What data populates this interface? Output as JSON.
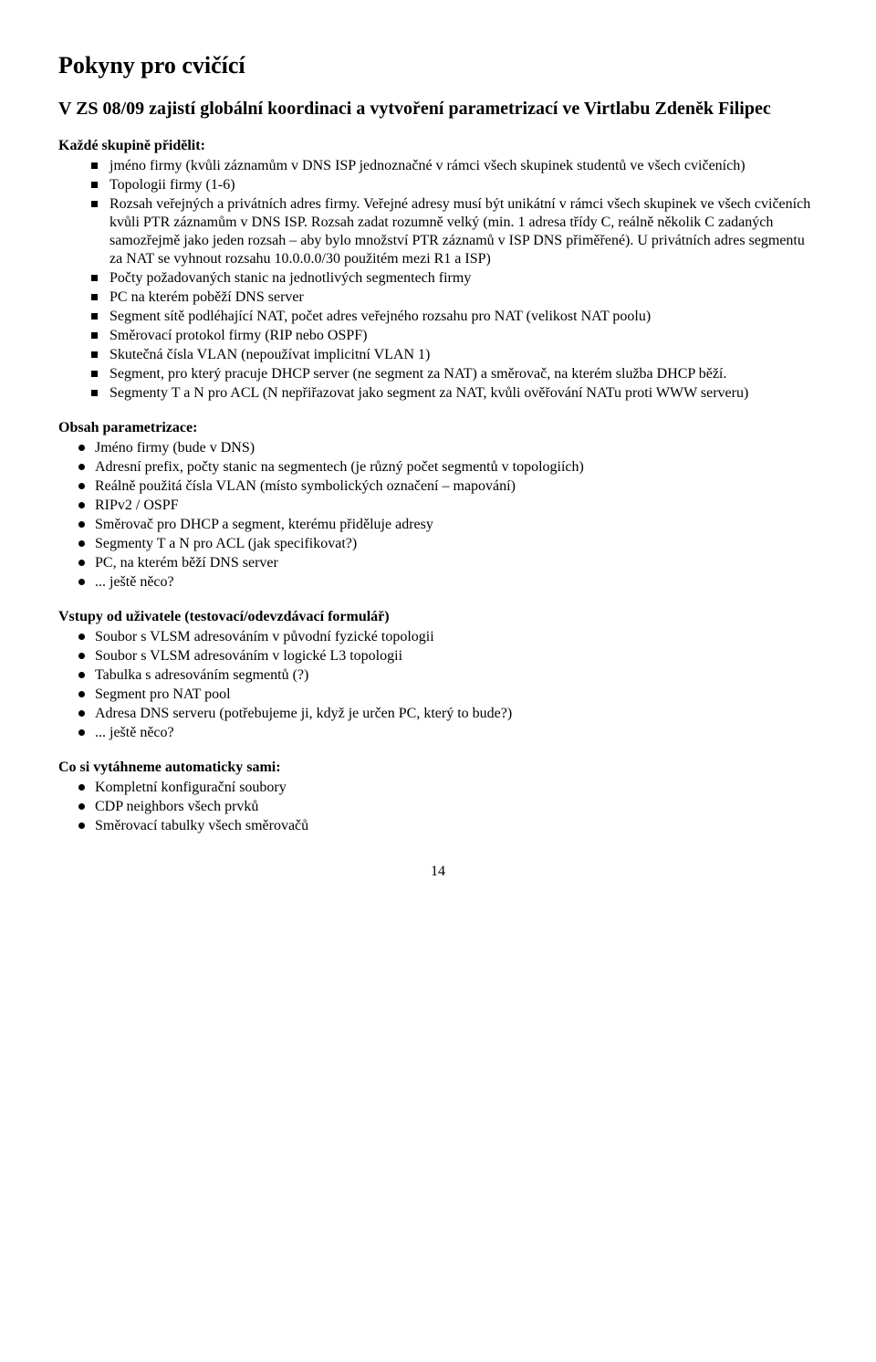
{
  "title": "Pokyny pro cvičící",
  "intro_sub": "V ZS 08/09 zajistí globální koordinaci a vytvoření parametrizací ve Virtlabu Zdeněk Filipec",
  "section1": {
    "lead": "Každé skupině přidělit:",
    "items": [
      "jméno firmy (kvůli záznamům v DNS ISP jednoznačné v rámci všech skupinek studentů ve všech cvičeních)",
      "Topologii firmy (1-6)",
      "Rozsah veřejných a privátních adres firmy. Veřejné adresy musí být unikátní v rámci všech skupinek ve všech cvičeních kvůli PTR záznamům v DNS ISP. Rozsah zadat rozumně velký (min. 1 adresa třídy C, reálně několik C zadaných samozřejmě jako jeden rozsah – aby bylo množství PTR záznamů v ISP DNS přiměřené). U privátních adres segmentu za NAT se vyhnout rozsahu 10.0.0.0/30 použitém mezi R1 a ISP)",
      "Počty požadovaných stanic na jednotlivých segmentech firmy",
      "PC na kterém poběží DNS server",
      "Segment sítě podléhající NAT, počet adres veřejného rozsahu pro NAT (velikost NAT poolu)",
      "Směrovací protokol firmy (RIP nebo OSPF)",
      "Skutečná čísla VLAN (nepoužívat implicitní VLAN 1)",
      "Segment, pro který pracuje DHCP server (ne segment za NAT) a směrovač, na kterém služba DHCP běží.",
      "Segmenty T a N pro ACL (N nepřiřazovat jako segment za NAT, kvůli ověřování NATu proti WWW serveru)"
    ]
  },
  "section2": {
    "lead": "Obsah parametrizace:",
    "items": [
      "Jméno firmy (bude v DNS)",
      "Adresní prefix, počty stanic na segmentech (je různý počet segmentů v topologiích)",
      "Reálně použitá čísla VLAN (místo symbolických označení – mapování)",
      "RIPv2 / OSPF",
      "Směrovač pro DHCP a segment, kterému přiděluje adresy",
      "Segmenty T a N pro ACL (jak specifikovat?)",
      "PC, na kterém běží DNS server",
      "... ještě něco?"
    ]
  },
  "section3": {
    "lead": "Vstupy od uživatele (testovací/odevzdávací formulář)",
    "items": [
      "Soubor s VLSM adresováním v původní fyzické topologii",
      "Soubor s VLSM adresováním v logické L3 topologii",
      "Tabulka s adresováním segmentů (?)",
      "Segment pro NAT pool",
      "Adresa DNS serveru (potřebujeme ji, když je určen PC, který to bude?)",
      "... ještě něco?"
    ]
  },
  "section4": {
    "lead": "Co si vytáhneme automaticky sami:",
    "items": [
      "Kompletní konfigurační soubory",
      "CDP neighbors všech prvků",
      "Směrovací tabulky všech směrovačů"
    ]
  },
  "page_number": "14"
}
